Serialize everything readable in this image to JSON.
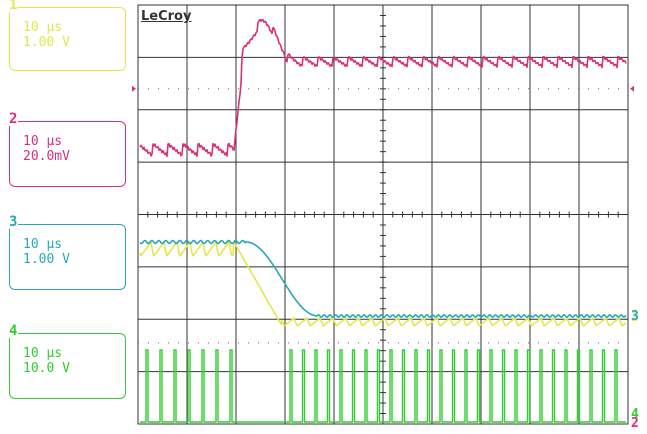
{
  "brand": "LeCroy",
  "channels": [
    {
      "num": "1",
      "timebase": "10 µs",
      "scale": "1.00 V",
      "color": "#e6e64a"
    },
    {
      "num": "2",
      "timebase": "10 µs",
      "scale": "20.0mV",
      "color": "#d8307a"
    },
    {
      "num": "3",
      "timebase": "10 µs",
      "scale": "1.00 V",
      "color": "#2aa6b8"
    },
    {
      "num": "4",
      "timebase": "10 µs",
      "scale": "10.0 V",
      "color": "#33cc33"
    }
  ],
  "colors": {
    "grid": "#333333",
    "ch1": "#e6e64a",
    "ch2": "#d8307a",
    "ch3": "#2aa6b8",
    "ch4": "#33cc33"
  }
}
